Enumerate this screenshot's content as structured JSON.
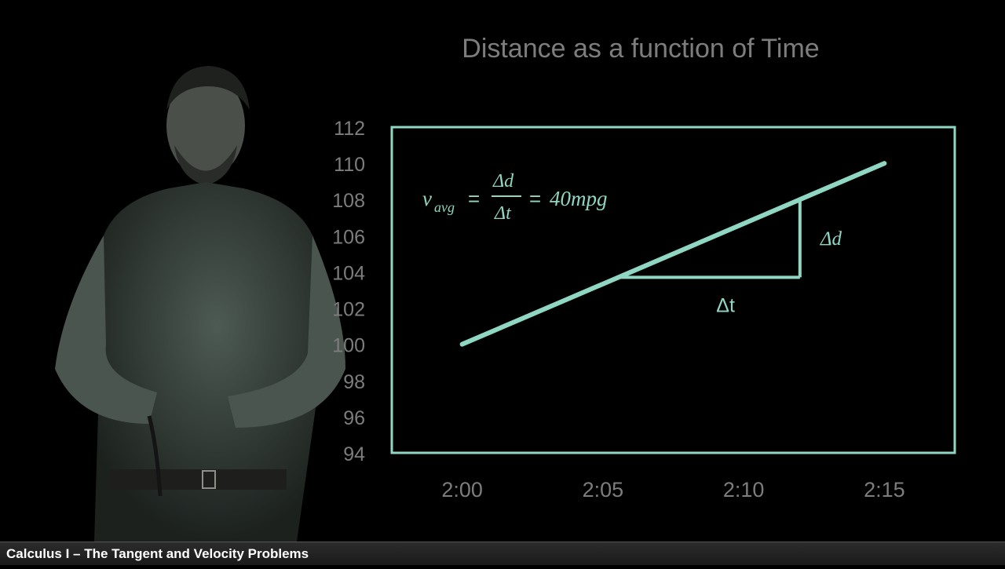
{
  "footer": {
    "title": "Calculus I – The Tangent and Velocity Problems"
  },
  "colors": {
    "accent": "#8fd6c3",
    "title_text": "#7d7d7d",
    "tick_text": "#7d7d7d"
  },
  "chart_data": {
    "type": "line",
    "title": "Distance as a function of Time",
    "xlabel": "",
    "ylabel": "",
    "x_tick_labels": [
      "2:00",
      "2:05",
      "2:10",
      "2:15"
    ],
    "x_ticks": [
      0,
      5,
      10,
      15
    ],
    "y_ticks": [
      94,
      96,
      98,
      100,
      102,
      104,
      106,
      108,
      110,
      112
    ],
    "xlim": [
      -2.5,
      17.5
    ],
    "ylim": [
      94,
      112
    ],
    "grid": false,
    "series": [
      {
        "x": [
          0,
          15
        ],
        "y": [
          100,
          110
        ]
      }
    ],
    "annotations": {
      "formula_lhs": "v",
      "formula_sub": "avg",
      "formula_eq1": "=",
      "formula_num": "Δd",
      "formula_den": "Δt",
      "formula_eq2": "=",
      "formula_rhs": "40mpg",
      "delta_t_label": "Δt",
      "delta_d_label": "Δd",
      "triangle": {
        "x0": 5.6,
        "y0": 103.7,
        "x1": 12.0,
        "y1": 108.0
      }
    }
  }
}
